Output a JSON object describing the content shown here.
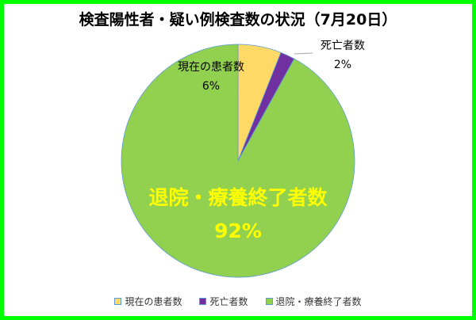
{
  "chart_data": {
    "type": "pie",
    "title": "検査陽性者・疑い例検査数の状況（7月20日）",
    "start_angle_deg": 0,
    "direction": "clockwise",
    "slices": [
      {
        "label": "現在の患者数",
        "value": 6,
        "display": "6%",
        "color": "#ffd966"
      },
      {
        "label": "死亡者数",
        "value": 2,
        "display": "2%",
        "color": "#7030a0"
      },
      {
        "label": "退院・療養終了者数",
        "value": 92,
        "display": "92%",
        "color": "#92d050"
      }
    ],
    "slice_border_color": "#5b9bd5",
    "legend_position": "bottom",
    "data_label_style": {
      "large_slice_label_color": "#ffff00",
      "small_slice_label_color": "#000000"
    }
  },
  "frame_color": "#00ff00"
}
